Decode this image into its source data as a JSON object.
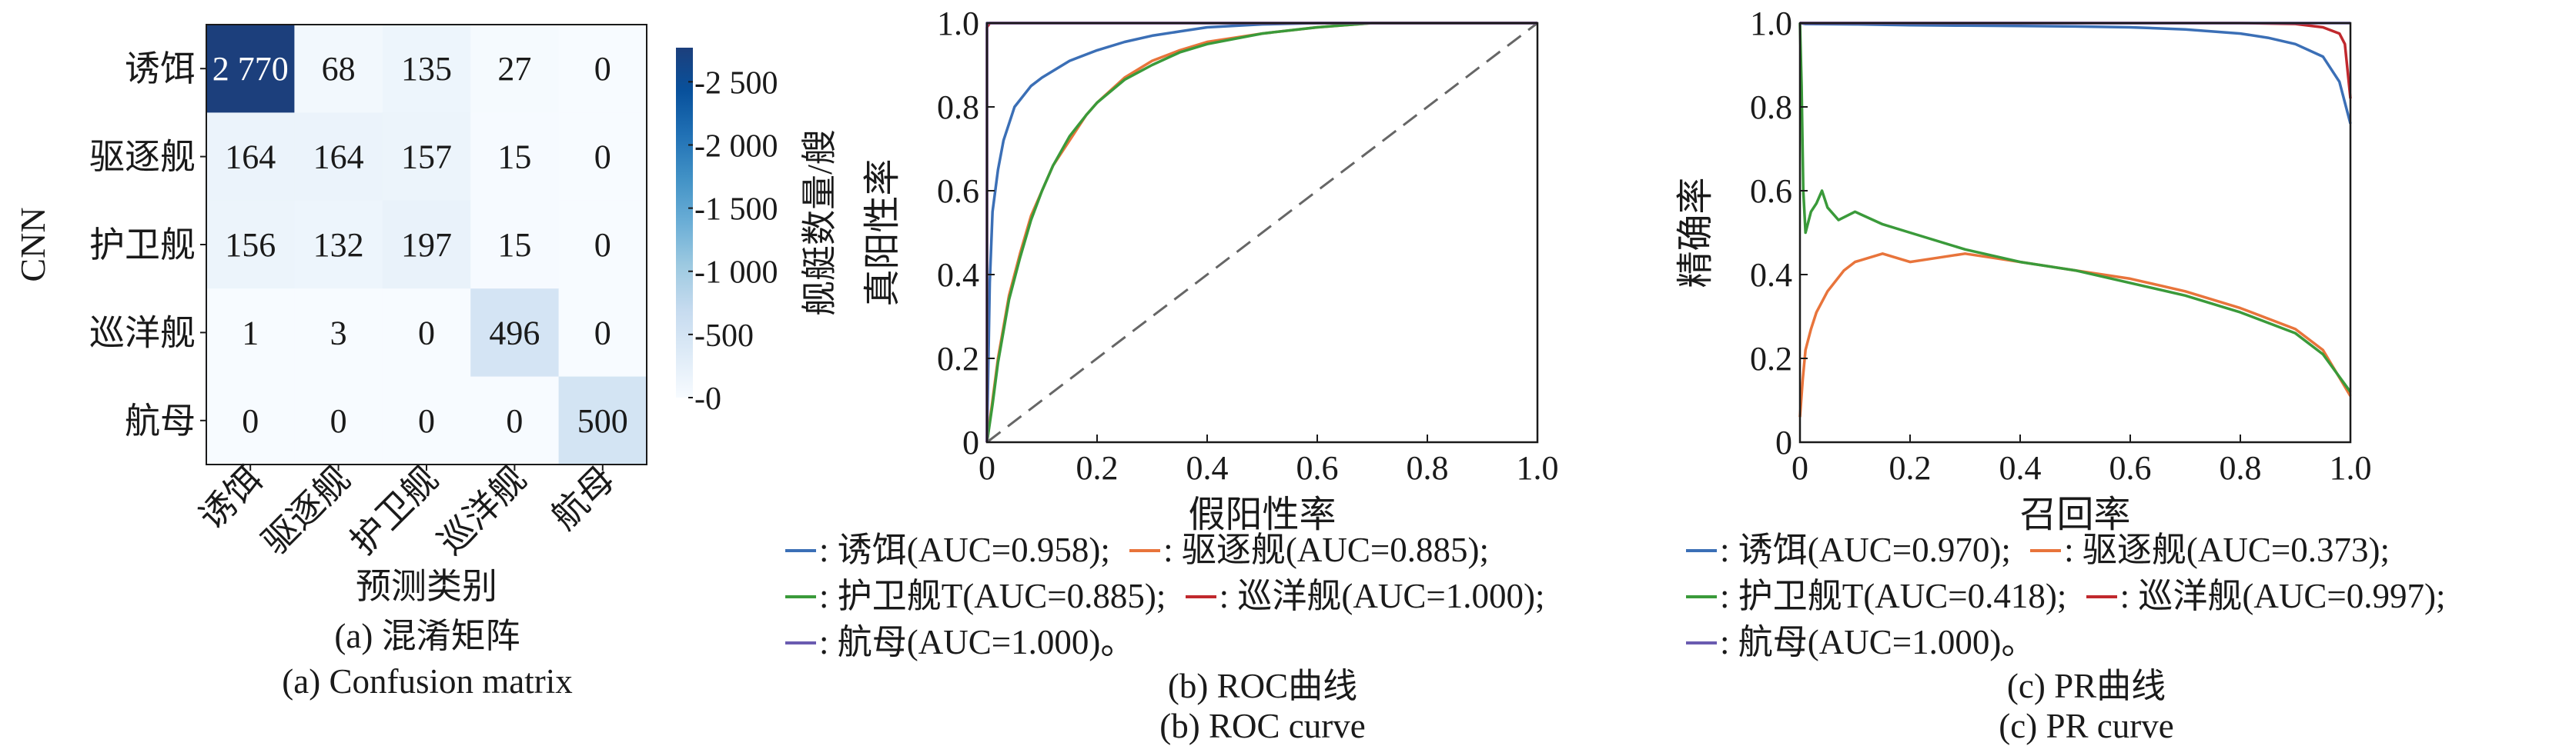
{
  "chart_data": [
    {
      "type": "heatmap",
      "ylabel": "CNN",
      "xlabel": "预测类别",
      "rows": [
        "诱饵",
        "驱逐舰",
        "护卫舰",
        "巡洋舰",
        "航母"
      ],
      "cols": [
        "诱饵",
        "驱逐舰",
        "护卫舰",
        "巡洋舰",
        "航母"
      ],
      "cell_labels": [
        [
          "2 770",
          "68",
          "135",
          "27",
          "0"
        ],
        [
          "164",
          "164",
          "157",
          "15",
          "0"
        ],
        [
          "156",
          "132",
          "197",
          "15",
          "0"
        ],
        [
          "1",
          "3",
          "0",
          "496",
          "0"
        ],
        [
          "0",
          "0",
          "0",
          "0",
          "500"
        ]
      ],
      "values": [
        [
          2770,
          68,
          135,
          27,
          0
        ],
        [
          164,
          164,
          157,
          15,
          0
        ],
        [
          156,
          132,
          197,
          15,
          0
        ],
        [
          1,
          3,
          0,
          496,
          0
        ],
        [
          0,
          0,
          0,
          0,
          500
        ]
      ],
      "colorbar": {
        "label": "舰艇数量/艘",
        "range": [
          0,
          2770
        ],
        "ticks": [
          0,
          500,
          1000,
          1500,
          2000,
          2500
        ],
        "tick_labels": [
          "0",
          "500",
          "1 000",
          "1 500",
          "2 000",
          "2 500"
        ],
        "colormap": [
          "#f7fbff",
          "#deebf7",
          "#c6dbef",
          "#9ecae1",
          "#6baed6",
          "#4292c6",
          "#2171b5",
          "#08519c",
          "#1c3f7c"
        ]
      },
      "caption_cn": "(a) 混淆矩阵",
      "caption_en": "(a) Confusion matrix"
    },
    {
      "type": "line",
      "xlabel": "假阳性率",
      "ylabel": "真阳性率",
      "xlim": [
        0,
        1
      ],
      "ylim": [
        0,
        1
      ],
      "ticks": [
        "0",
        "0.2",
        "0.4",
        "0.6",
        "0.8",
        "1.0"
      ],
      "series": [
        {
          "name": "诱饵(AUC=0.958);",
          "color": "#3b6fb6",
          "x": [
            0,
            0.005,
            0.01,
            0.02,
            0.03,
            0.05,
            0.08,
            0.1,
            0.15,
            0.2,
            0.25,
            0.3,
            0.35,
            0.4,
            0.5,
            0.6,
            0.7,
            1.0
          ],
          "y": [
            0,
            0.38,
            0.55,
            0.65,
            0.72,
            0.8,
            0.85,
            0.87,
            0.91,
            0.935,
            0.955,
            0.97,
            0.98,
            0.99,
            0.997,
            1.0,
            1.0,
            1.0
          ]
        },
        {
          "name": "驱逐舰(AUC=0.885);",
          "color": "#e8743b",
          "x": [
            0,
            0.01,
            0.02,
            0.04,
            0.06,
            0.08,
            0.1,
            0.12,
            0.15,
            0.18,
            0.2,
            0.25,
            0.3,
            0.35,
            0.4,
            0.5,
            0.6,
            0.7,
            0.8,
            1.0
          ],
          "y": [
            0,
            0.1,
            0.2,
            0.35,
            0.45,
            0.54,
            0.6,
            0.66,
            0.72,
            0.78,
            0.81,
            0.87,
            0.91,
            0.935,
            0.955,
            0.975,
            0.99,
            1.0,
            1.0,
            1.0
          ]
        },
        {
          "name": "护卫舰T(AUC=0.885);",
          "color": "#3a9a3a",
          "x": [
            0,
            0.01,
            0.02,
            0.04,
            0.06,
            0.08,
            0.1,
            0.12,
            0.15,
            0.18,
            0.2,
            0.25,
            0.3,
            0.35,
            0.4,
            0.5,
            0.6,
            0.7,
            0.8,
            1.0
          ],
          "y": [
            0,
            0.09,
            0.19,
            0.34,
            0.44,
            0.53,
            0.6,
            0.66,
            0.73,
            0.78,
            0.81,
            0.865,
            0.9,
            0.93,
            0.95,
            0.975,
            0.99,
            1.0,
            1.0,
            1.0
          ]
        },
        {
          "name": "巡洋舰(AUC=1.000);",
          "color": "#c0282d",
          "x": [
            0,
            0,
            0.005,
            1.0
          ],
          "y": [
            0,
            0.99,
            1.0,
            1.0
          ]
        },
        {
          "name": "航母(AUC=1.000)。",
          "color": "#6a5bb0",
          "x": [
            0,
            0,
            1.0
          ],
          "y": [
            0,
            1.0,
            1.0
          ]
        }
      ],
      "diagonal": true,
      "caption_cn": "(b) ROC曲线",
      "caption_en": "(b) ROC curve"
    },
    {
      "type": "line",
      "xlabel": "召回率",
      "ylabel": "精确率",
      "xlim": [
        0,
        1
      ],
      "ylim": [
        0,
        1
      ],
      "ticks": [
        "0",
        "0.2",
        "0.4",
        "0.6",
        "0.8",
        "1.0"
      ],
      "series": [
        {
          "name": "诱饵(AUC=0.970);",
          "color": "#3b6fb6",
          "x": [
            0,
            0.01,
            0.1,
            0.2,
            0.3,
            0.4,
            0.5,
            0.6,
            0.7,
            0.8,
            0.85,
            0.9,
            0.95,
            0.98,
            1.0
          ],
          "y": [
            1.0,
            0.998,
            0.997,
            0.995,
            0.994,
            0.993,
            0.992,
            0.99,
            0.985,
            0.975,
            0.965,
            0.95,
            0.92,
            0.86,
            0.76
          ]
        },
        {
          "name": "驱逐舰(AUC=0.373);",
          "color": "#e8743b",
          "x": [
            0,
            0.005,
            0.01,
            0.02,
            0.03,
            0.05,
            0.08,
            0.1,
            0.15,
            0.2,
            0.25,
            0.3,
            0.35,
            0.4,
            0.5,
            0.6,
            0.7,
            0.8,
            0.9,
            0.95,
            1.0
          ],
          "y": [
            0.06,
            0.15,
            0.22,
            0.27,
            0.31,
            0.36,
            0.41,
            0.43,
            0.45,
            0.43,
            0.44,
            0.45,
            0.44,
            0.43,
            0.41,
            0.39,
            0.36,
            0.32,
            0.27,
            0.22,
            0.11
          ]
        },
        {
          "name": "护卫舰T(AUC=0.418);",
          "color": "#3a9a3a",
          "x": [
            0,
            0.003,
            0.006,
            0.01,
            0.02,
            0.03,
            0.04,
            0.05,
            0.07,
            0.1,
            0.15,
            0.2,
            0.3,
            0.4,
            0.5,
            0.6,
            0.7,
            0.8,
            0.9,
            0.95,
            1.0
          ],
          "y": [
            1.0,
            0.85,
            0.6,
            0.5,
            0.55,
            0.57,
            0.6,
            0.56,
            0.53,
            0.55,
            0.52,
            0.5,
            0.46,
            0.43,
            0.41,
            0.38,
            0.35,
            0.31,
            0.26,
            0.21,
            0.12
          ]
        },
        {
          "name": "巡洋舰(AUC=0.997);",
          "color": "#c0282d",
          "x": [
            0,
            0.5,
            0.8,
            0.9,
            0.95,
            0.98,
            0.99,
            1.0
          ],
          "y": [
            1.0,
            1.0,
            1.0,
            0.998,
            0.99,
            0.975,
            0.95,
            0.82
          ]
        },
        {
          "name": "航母(AUC=1.000)。",
          "color": "#6a5bb0",
          "x": [
            0,
            1.0,
            1.0
          ],
          "y": [
            1.0,
            1.0,
            1.0
          ]
        }
      ],
      "caption_cn": "(c) PR曲线",
      "caption_en": "(c) PR curve"
    }
  ]
}
